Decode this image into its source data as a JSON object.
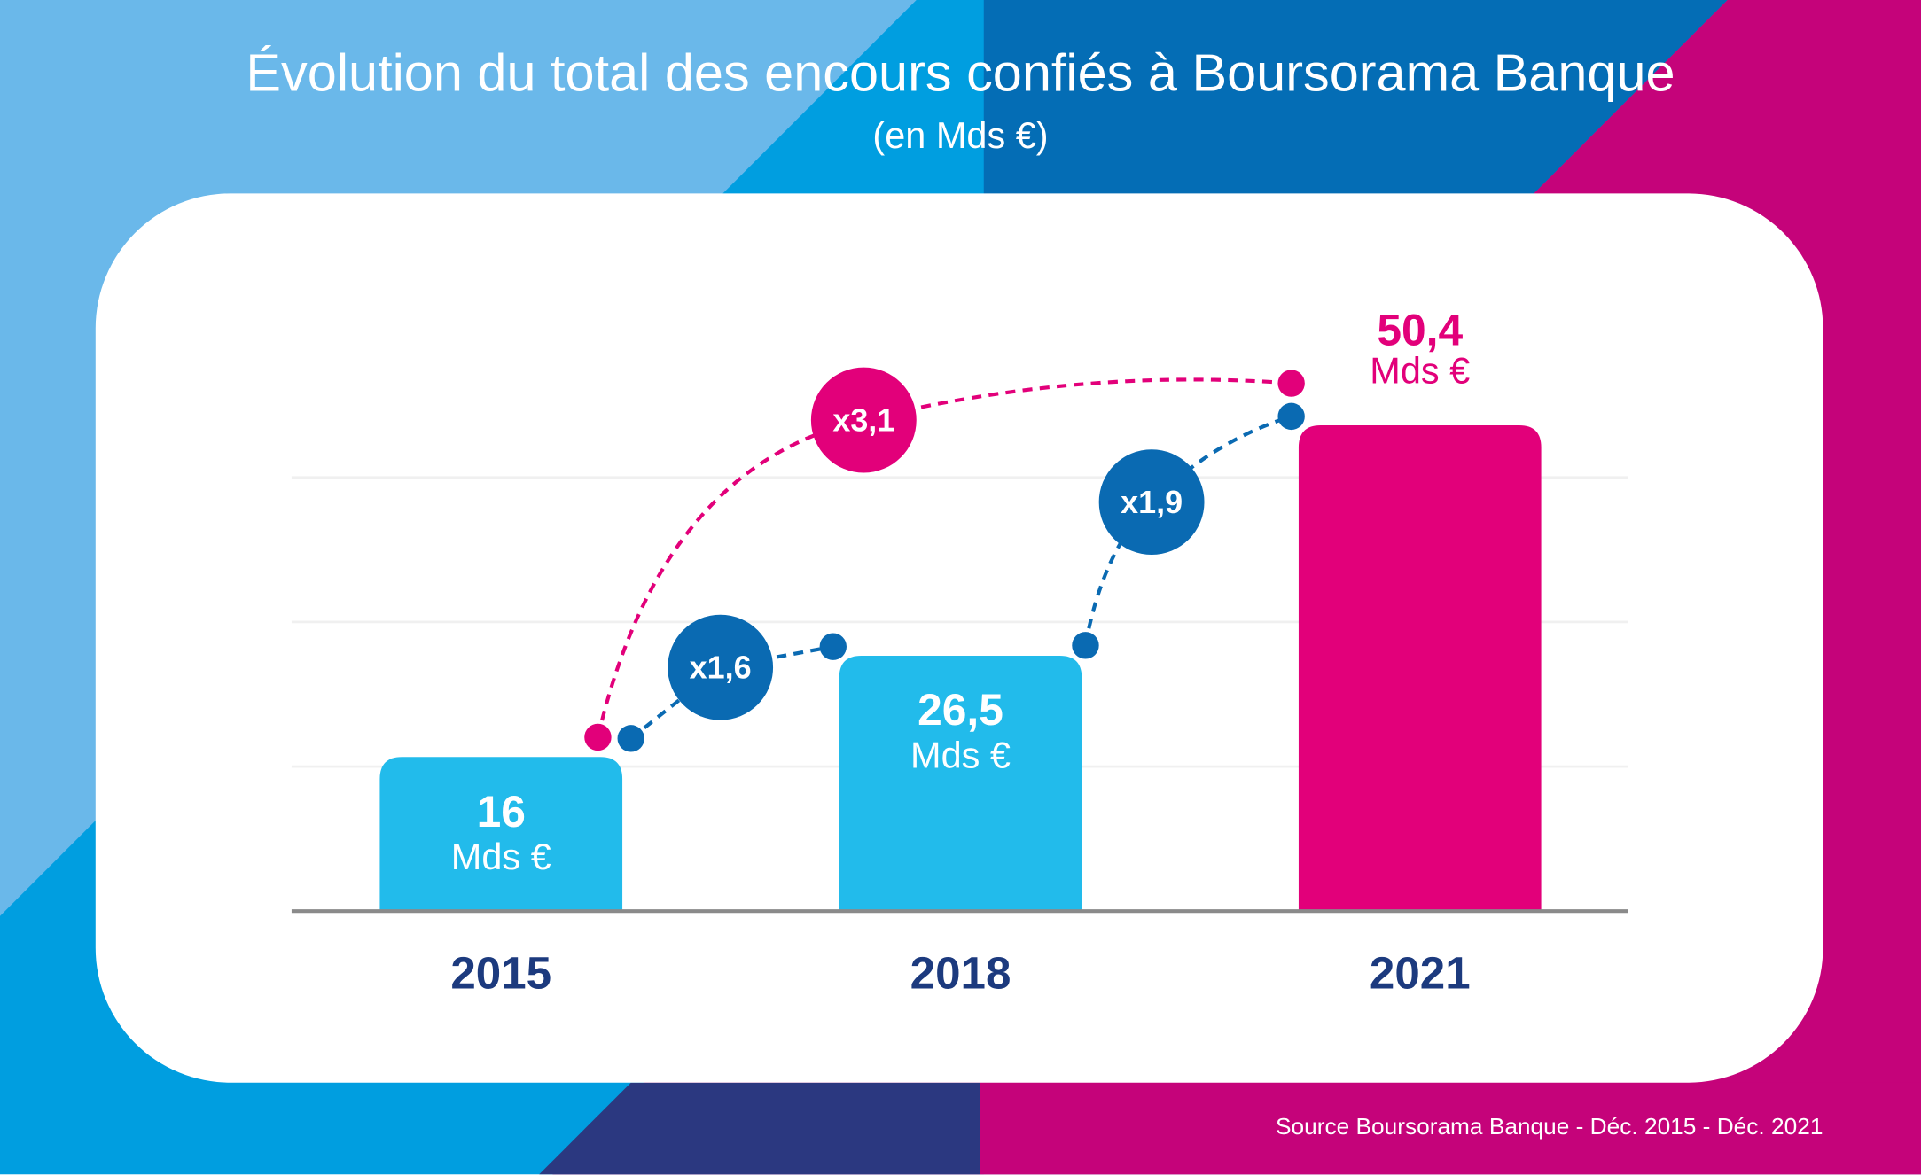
{
  "title": "Évolution du total des encours confiés à Boursorama Banque",
  "subtitle": "(en Mds €)",
  "source": "Source Boursorama Banque - Déc. 2015 - Déc. 2021",
  "colors": {
    "bar_light": "#22bbeb",
    "bar_highlight": "#e2007a",
    "multiplier_blue": "#0a6ab2",
    "multiplier_pink": "#e2007a",
    "year_label": "#1c3a7e",
    "bg_light_blue": "#6ab8ea",
    "bg_blue": "#009ee0",
    "bg_dark_blue": "#046db5",
    "bg_magenta": "#c5037a",
    "bg_navy": "#2b3880"
  },
  "chart_data": {
    "type": "bar",
    "title": "Évolution du total des encours confiés à Boursorama Banque",
    "subtitle": "(en Mds €)",
    "categories": [
      "2015",
      "2018",
      "2021"
    ],
    "values": [
      16,
      26.5,
      50.4
    ],
    "value_labels": [
      "16",
      "26,5",
      "50,4"
    ],
    "unit_label": "Mds €",
    "ylim": [
      0,
      55
    ],
    "grid": true,
    "gridlines": [
      15,
      30,
      45
    ],
    "annotations": [
      {
        "label": "x1,6",
        "from": "2015",
        "to": "2018",
        "color": "#0a6ab2"
      },
      {
        "label": "x1,9",
        "from": "2018",
        "to": "2021",
        "color": "#0a6ab2"
      },
      {
        "label": "x3,1",
        "from": "2015",
        "to": "2021",
        "color": "#e2007a"
      }
    ]
  }
}
